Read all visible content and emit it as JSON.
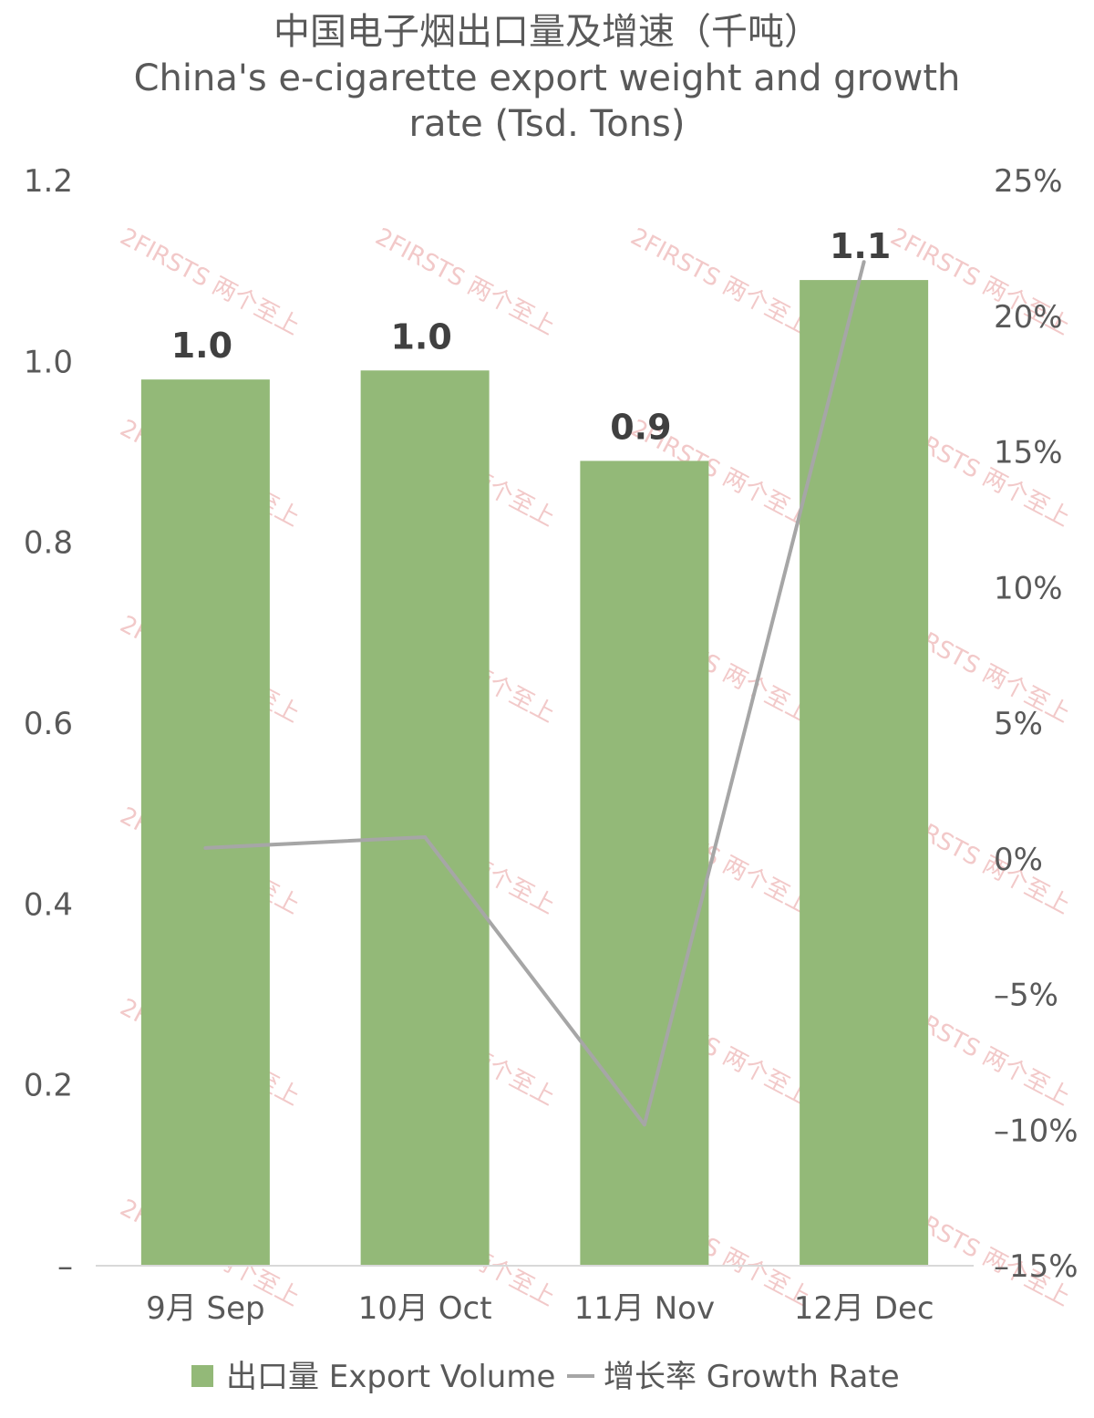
{
  "chart_data": {
    "type": "bar",
    "title_cn": "中国电子烟出口量及增速（千吨）",
    "title_en_line1": "China's e-cigarette export weight and growth",
    "title_en_line2": "rate (Tsd. Tons)",
    "categories": [
      "9月 Sep",
      "10月 Oct",
      "11月 Nov",
      "12月 Dec"
    ],
    "series": [
      {
        "name": "出口量 Export Volume",
        "type": "bar",
        "axis": "left",
        "color": "#93b978",
        "values": [
          0.98,
          0.99,
          0.89,
          1.09
        ],
        "data_labels": [
          "1.0",
          "1.0",
          "0.9",
          "1.1"
        ]
      },
      {
        "name": "增长率 Growth Rate",
        "type": "line",
        "axis": "right",
        "color": "#a6a6a6",
        "values": [
          0.004,
          0.008,
          -0.098,
          0.22
        ]
      }
    ],
    "left_axis": {
      "ylim": [
        0,
        1.2
      ],
      "ticks": [
        0,
        0.2,
        0.4,
        0.6,
        0.8,
        1.0,
        1.2
      ],
      "tick_labels": [
        "–",
        "0.2",
        "0.4",
        "0.6",
        "0.8",
        "1.0",
        "1.2"
      ]
    },
    "right_axis": {
      "ylim": [
        -0.15,
        0.25
      ],
      "ticks": [
        -0.15,
        -0.1,
        -0.05,
        0,
        0.05,
        0.1,
        0.15,
        0.2,
        0.25
      ],
      "tick_labels": [
        "–15%",
        "–10%",
        "–5%",
        "0%",
        "5%",
        "10%",
        "15%",
        "20%",
        "25%"
      ]
    },
    "grid": false,
    "legend_position": "bottom",
    "watermark": "2FIRSTS 两个至上"
  }
}
